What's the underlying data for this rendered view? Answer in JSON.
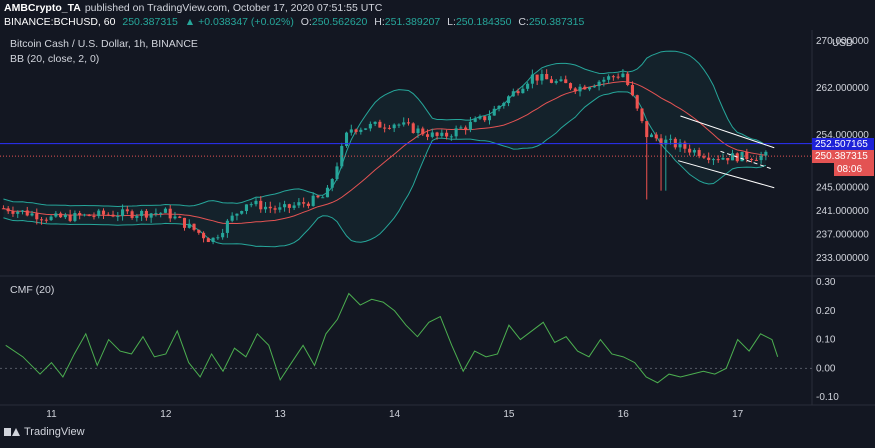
{
  "header": {
    "author": "AMBCrypto_TA",
    "published_prefix": "published on TradingView.com, October 17, 2020 07:51:55 UTC",
    "symbol": "BINANCE:BCHUSD, 60",
    "last": "250.387315",
    "change": "▲ +0.038347 (+0.02%)",
    "o_label": "O:",
    "o_value": "250.562620",
    "h_label": "H:",
    "h_value": "251.389207",
    "l_label": "L:",
    "l_value": "250.184350",
    "c_label": "C:",
    "c_value": "250.387315"
  },
  "chart_title": "Bitcoin Cash / U.S. Dollar, 1h, BINANCE",
  "indicator_bb": "BB (20, close, 2, 0)",
  "indicator_cmf": "CMF (20)",
  "currency": "USD",
  "price_tag_blue": "252.507165",
  "price_tag_red": "250.387315",
  "price_tag_time": "08:06",
  "footer_brand": "TradingView",
  "colors": {
    "background": "#131722",
    "up": "#26a69a",
    "down": "#ef5350",
    "bb_band": "#26a69a",
    "bb_basis": "#e35353",
    "cmf": "#4caf50",
    "channel": "#ffffff",
    "blue_line": "#2b32ff"
  },
  "chart_data": [
    {
      "type": "candlestick",
      "title": "Bitcoin Cash / U.S. Dollar, 1h, BINANCE",
      "x_tick_labels": [
        "11",
        "12",
        "13",
        "14",
        "15",
        "16",
        "17"
      ],
      "y_tick_labels": [
        "270.000000",
        "262.000000",
        "254.000000",
        "245.000000",
        "241.000000",
        "237.000000",
        "233.000000"
      ],
      "y_ticks": [
        270,
        262,
        254,
        245,
        241,
        237,
        233
      ],
      "ylim": [
        231.0,
        271.5
      ],
      "xlim": [
        10.55,
        17.65
      ],
      "ohlc_approx": [
        {
          "x": 10.6,
          "close": 241.5
        },
        {
          "x": 11.0,
          "close": 239.8
        },
        {
          "x": 11.5,
          "close": 240.5
        },
        {
          "x": 12.0,
          "close": 240.8
        },
        {
          "x": 12.4,
          "close": 236.0
        },
        {
          "x": 12.7,
          "close": 242.5
        },
        {
          "x": 13.0,
          "close": 241.2
        },
        {
          "x": 13.4,
          "close": 243.5
        },
        {
          "x": 13.6,
          "close": 255.0
        },
        {
          "x": 14.0,
          "close": 256.0
        },
        {
          "x": 14.4,
          "close": 253.5
        },
        {
          "x": 14.8,
          "close": 257.0
        },
        {
          "x": 15.2,
          "close": 264.0
        },
        {
          "x": 15.6,
          "close": 262.0
        },
        {
          "x": 16.0,
          "close": 264.5
        },
        {
          "x": 16.2,
          "close": 254.0
        },
        {
          "x": 16.5,
          "close": 252.0
        },
        {
          "x": 16.8,
          "close": 250.2
        },
        {
          "x": 17.25,
          "close": 250.39
        }
      ],
      "indicator": "BB (20, close, 2, 0)"
    },
    {
      "type": "line",
      "title": "CMF (20)",
      "y_tick_labels": [
        "0.30",
        "0.20",
        "0.10",
        "0.00",
        "-0.10"
      ],
      "y_ticks": [
        0.3,
        0.2,
        0.1,
        0.0,
        -0.1
      ],
      "ylim": [
        -0.11,
        0.3
      ],
      "series": [
        {
          "values": [
            [
              10.6,
              0.08
            ],
            [
              10.75,
              0.04
            ],
            [
              10.9,
              -0.02
            ],
            [
              11.0,
              0.02
            ],
            [
              11.1,
              -0.03
            ],
            [
              11.2,
              0.05
            ],
            [
              11.3,
              0.12
            ],
            [
              11.4,
              0.01
            ],
            [
              11.5,
              0.1
            ],
            [
              11.6,
              0.06
            ],
            [
              11.7,
              0.05
            ],
            [
              11.8,
              0.11
            ],
            [
              11.9,
              0.04
            ],
            [
              12.0,
              0.05
            ],
            [
              12.1,
              0.13
            ],
            [
              12.2,
              0.02
            ],
            [
              12.3,
              -0.03
            ],
            [
              12.4,
              0.05
            ],
            [
              12.5,
              -0.01
            ],
            [
              12.6,
              0.07
            ],
            [
              12.7,
              0.04
            ],
            [
              12.8,
              0.12
            ],
            [
              12.9,
              0.08
            ],
            [
              13.0,
              -0.04
            ],
            [
              13.1,
              0.02
            ],
            [
              13.2,
              0.08
            ],
            [
              13.3,
              0.01
            ],
            [
              13.4,
              0.12
            ],
            [
              13.5,
              0.17
            ],
            [
              13.6,
              0.26
            ],
            [
              13.7,
              0.22
            ],
            [
              13.8,
              0.24
            ],
            [
              13.9,
              0.23
            ],
            [
              14.0,
              0.2
            ],
            [
              14.1,
              0.15
            ],
            [
              14.2,
              0.11
            ],
            [
              14.3,
              0.16
            ],
            [
              14.4,
              0.18
            ],
            [
              14.5,
              0.08
            ],
            [
              14.6,
              -0.01
            ],
            [
              14.7,
              0.06
            ],
            [
              14.8,
              0.04
            ],
            [
              14.9,
              0.05
            ],
            [
              15.0,
              0.15
            ],
            [
              15.1,
              0.1
            ],
            [
              15.2,
              0.13
            ],
            [
              15.3,
              0.16
            ],
            [
              15.4,
              0.09
            ],
            [
              15.5,
              0.11
            ],
            [
              15.6,
              0.06
            ],
            [
              15.7,
              0.04
            ],
            [
              15.8,
              0.1
            ],
            [
              15.9,
              0.05
            ],
            [
              16.0,
              0.04
            ],
            [
              16.1,
              0.02
            ],
            [
              16.2,
              -0.03
            ],
            [
              16.3,
              -0.05
            ],
            [
              16.4,
              -0.02
            ],
            [
              16.5,
              -0.03
            ],
            [
              16.6,
              -0.02
            ],
            [
              16.7,
              -0.01
            ],
            [
              16.8,
              -0.02
            ],
            [
              16.9,
              0.0
            ],
            [
              17.0,
              0.1
            ],
            [
              17.1,
              0.06
            ],
            [
              17.2,
              0.12
            ],
            [
              17.3,
              0.1
            ],
            [
              17.35,
              0.04
            ]
          ]
        }
      ]
    }
  ]
}
